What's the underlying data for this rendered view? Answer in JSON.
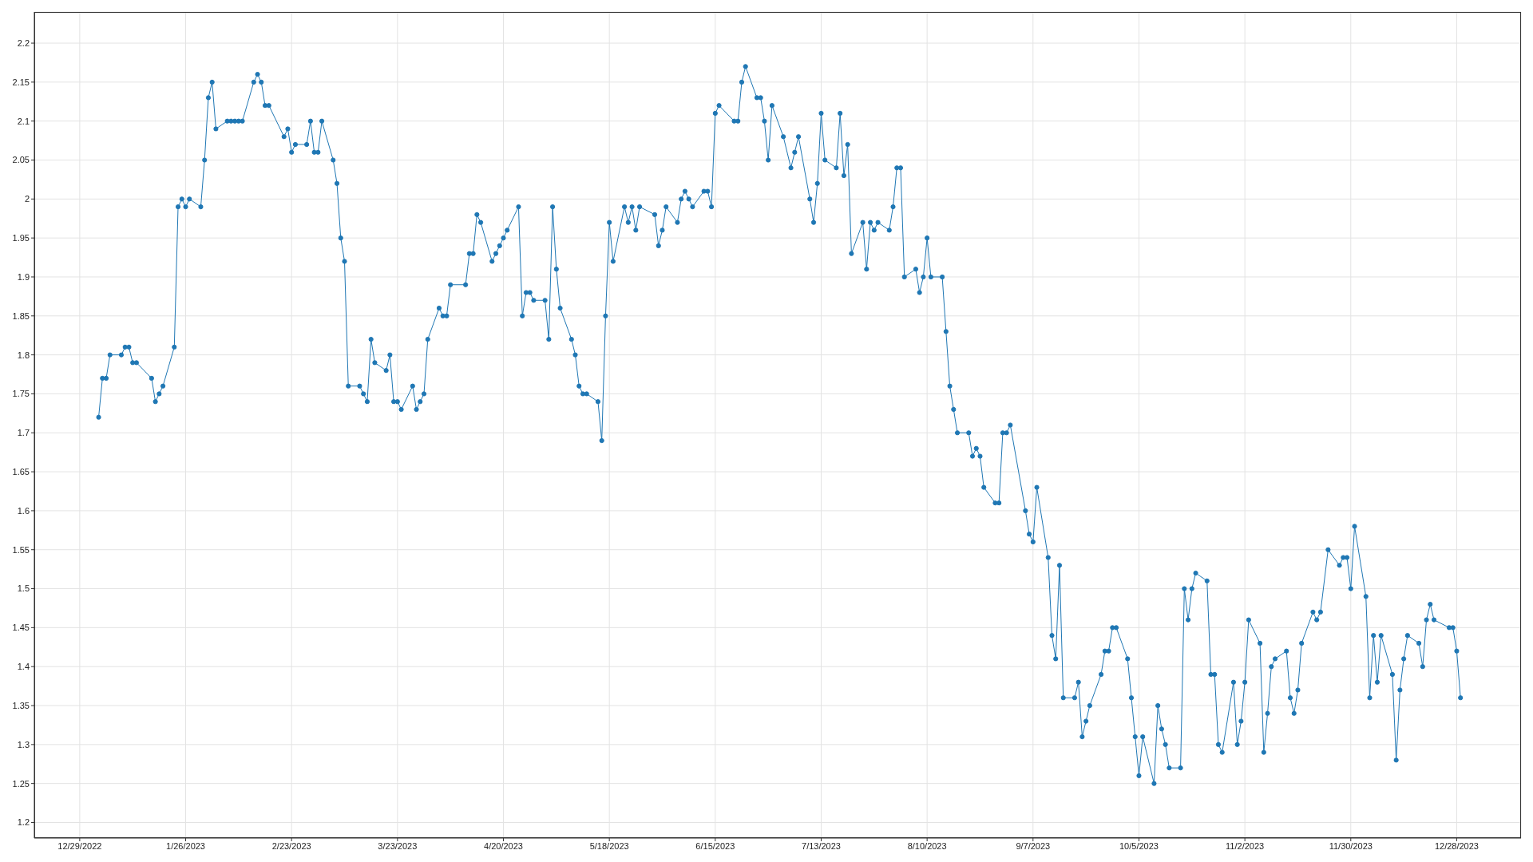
{
  "chart_data": {
    "type": "line",
    "color": "#1f77b4",
    "marker": "circle",
    "grid": true,
    "xlim": [
      "2022-12-17",
      "2024-01-14"
    ],
    "xticks": [
      {
        "value": "2022-12-29",
        "label": "12/29/2022"
      },
      {
        "value": "2023-01-26",
        "label": "1/26/2023"
      },
      {
        "value": "2023-02-23",
        "label": "2/23/2023"
      },
      {
        "value": "2023-03-23",
        "label": "3/23/2023"
      },
      {
        "value": "2023-04-20",
        "label": "4/20/2023"
      },
      {
        "value": "2023-05-18",
        "label": "5/18/2023"
      },
      {
        "value": "2023-06-15",
        "label": "6/15/2023"
      },
      {
        "value": "2023-07-13",
        "label": "7/13/2023"
      },
      {
        "value": "2023-08-10",
        "label": "8/10/2023"
      },
      {
        "value": "2023-09-07",
        "label": "9/7/2023"
      },
      {
        "value": "2023-10-05",
        "label": "10/5/2023"
      },
      {
        "value": "2023-11-02",
        "label": "11/2/2023"
      },
      {
        "value": "2023-11-30",
        "label": "11/30/2023"
      },
      {
        "value": "2023-12-28",
        "label": "12/28/2023"
      }
    ],
    "ylim": [
      1.18,
      2.24
    ],
    "yticks": [
      1.2,
      1.25,
      1.3,
      1.35,
      1.4,
      1.45,
      1.5,
      1.55,
      1.6,
      1.65,
      1.7,
      1.75,
      1.8,
      1.85,
      1.9,
      1.95,
      2,
      2.05,
      2.1,
      2.15,
      2.2
    ],
    "x": [
      "2023-01-03",
      "2023-01-04",
      "2023-01-05",
      "2023-01-06",
      "2023-01-09",
      "2023-01-10",
      "2023-01-11",
      "2023-01-12",
      "2023-01-13",
      "2023-01-17",
      "2023-01-18",
      "2023-01-19",
      "2023-01-20",
      "2023-01-23",
      "2023-01-24",
      "2023-01-25",
      "2023-01-26",
      "2023-01-27",
      "2023-01-30",
      "2023-01-31",
      "2023-02-01",
      "2023-02-02",
      "2023-02-03",
      "2023-02-06",
      "2023-02-07",
      "2023-02-08",
      "2023-02-09",
      "2023-02-10",
      "2023-02-13",
      "2023-02-14",
      "2023-02-15",
      "2023-02-16",
      "2023-02-17",
      "2023-02-21",
      "2023-02-22",
      "2023-02-23",
      "2023-02-24",
      "2023-02-27",
      "2023-02-28",
      "2023-03-01",
      "2023-03-02",
      "2023-03-03",
      "2023-03-06",
      "2023-03-07",
      "2023-03-08",
      "2023-03-09",
      "2023-03-10",
      "2023-03-13",
      "2023-03-14",
      "2023-03-15",
      "2023-03-16",
      "2023-03-17",
      "2023-03-20",
      "2023-03-21",
      "2023-03-22",
      "2023-03-23",
      "2023-03-24",
      "2023-03-27",
      "2023-03-28",
      "2023-03-29",
      "2023-03-30",
      "2023-03-31",
      "2023-04-03",
      "2023-04-04",
      "2023-04-05",
      "2023-04-06",
      "2023-04-10",
      "2023-04-11",
      "2023-04-12",
      "2023-04-13",
      "2023-04-14",
      "2023-04-17",
      "2023-04-18",
      "2023-04-19",
      "2023-04-20",
      "2023-04-21",
      "2023-04-24",
      "2023-04-25",
      "2023-04-26",
      "2023-04-27",
      "2023-04-28",
      "2023-05-01",
      "2023-05-02",
      "2023-05-03",
      "2023-05-04",
      "2023-05-05",
      "2023-05-08",
      "2023-05-09",
      "2023-05-10",
      "2023-05-11",
      "2023-05-12",
      "2023-05-15",
      "2023-05-16",
      "2023-05-17",
      "2023-05-18",
      "2023-05-19",
      "2023-05-22",
      "2023-05-23",
      "2023-05-24",
      "2023-05-25",
      "2023-05-26",
      "2023-05-30",
      "2023-05-31",
      "2023-06-01",
      "2023-06-02",
      "2023-06-05",
      "2023-06-06",
      "2023-06-07",
      "2023-06-08",
      "2023-06-09",
      "2023-06-12",
      "2023-06-13",
      "2023-06-14",
      "2023-06-15",
      "2023-06-16",
      "2023-06-20",
      "2023-06-21",
      "2023-06-22",
      "2023-06-23",
      "2023-06-26",
      "2023-06-27",
      "2023-06-28",
      "2023-06-29",
      "2023-06-30",
      "2023-07-03",
      "2023-07-05",
      "2023-07-06",
      "2023-07-07",
      "2023-07-10",
      "2023-07-11",
      "2023-07-12",
      "2023-07-13",
      "2023-07-14",
      "2023-07-17",
      "2023-07-18",
      "2023-07-19",
      "2023-07-20",
      "2023-07-21",
      "2023-07-24",
      "2023-07-25",
      "2023-07-26",
      "2023-07-27",
      "2023-07-28",
      "2023-07-31",
      "2023-08-01",
      "2023-08-02",
      "2023-08-03",
      "2023-08-04",
      "2023-08-07",
      "2023-08-08",
      "2023-08-09",
      "2023-08-10",
      "2023-08-11",
      "2023-08-14",
      "2023-08-15",
      "2023-08-16",
      "2023-08-17",
      "2023-08-18",
      "2023-08-21",
      "2023-08-22",
      "2023-08-23",
      "2023-08-24",
      "2023-08-25",
      "2023-08-28",
      "2023-08-29",
      "2023-08-30",
      "2023-08-31",
      "2023-09-01",
      "2023-09-05",
      "2023-09-06",
      "2023-09-07",
      "2023-09-08",
      "2023-09-11",
      "2023-09-12",
      "2023-09-13",
      "2023-09-14",
      "2023-09-15",
      "2023-09-18",
      "2023-09-19",
      "2023-09-20",
      "2023-09-21",
      "2023-09-22",
      "2023-09-25",
      "2023-09-26",
      "2023-09-27",
      "2023-09-28",
      "2023-09-29",
      "2023-10-02",
      "2023-10-03",
      "2023-10-04",
      "2023-10-05",
      "2023-10-06",
      "2023-10-09",
      "2023-10-10",
      "2023-10-11",
      "2023-10-12",
      "2023-10-13",
      "2023-10-16",
      "2023-10-17",
      "2023-10-18",
      "2023-10-19",
      "2023-10-20",
      "2023-10-23",
      "2023-10-24",
      "2023-10-25",
      "2023-10-26",
      "2023-10-27",
      "2023-10-30",
      "2023-10-31",
      "2023-11-01",
      "2023-11-02",
      "2023-11-03",
      "2023-11-06",
      "2023-11-07",
      "2023-11-08",
      "2023-11-09",
      "2023-11-10",
      "2023-11-13",
      "2023-11-14",
      "2023-11-15",
      "2023-11-16",
      "2023-11-17",
      "2023-11-20",
      "2023-11-21",
      "2023-11-22",
      "2023-11-24",
      "2023-11-27",
      "2023-11-28",
      "2023-11-29",
      "2023-11-30",
      "2023-12-01",
      "2023-12-04",
      "2023-12-05",
      "2023-12-06",
      "2023-12-07",
      "2023-12-08",
      "2023-12-11",
      "2023-12-12",
      "2023-12-13",
      "2023-12-14",
      "2023-12-15",
      "2023-12-18",
      "2023-12-19",
      "2023-12-20",
      "2023-12-21",
      "2023-12-22",
      "2023-12-26",
      "2023-12-27",
      "2023-12-28",
      "2023-12-29"
    ],
    "values": [
      1.72,
      1.77,
      1.77,
      1.8,
      1.8,
      1.81,
      1.81,
      1.79,
      1.79,
      1.77,
      1.74,
      1.75,
      1.76,
      1.81,
      1.99,
      2.0,
      1.99,
      2.0,
      1.99,
      2.05,
      2.13,
      2.15,
      2.09,
      2.1,
      2.1,
      2.1,
      2.1,
      2.1,
      2.15,
      2.16,
      2.15,
      2.12,
      2.12,
      2.08,
      2.09,
      2.06,
      2.07,
      2.07,
      2.1,
      2.06,
      2.06,
      2.1,
      2.05,
      2.02,
      1.95,
      1.92,
      1.76,
      1.76,
      1.75,
      1.74,
      1.82,
      1.79,
      1.78,
      1.8,
      1.74,
      1.74,
      1.73,
      1.76,
      1.73,
      1.74,
      1.75,
      1.82,
      1.86,
      1.85,
      1.85,
      1.89,
      1.89,
      1.93,
      1.93,
      1.98,
      1.97,
      1.92,
      1.93,
      1.94,
      1.95,
      1.96,
      1.99,
      1.85,
      1.88,
      1.88,
      1.87,
      1.87,
      1.82,
      1.99,
      1.91,
      1.86,
      1.82,
      1.8,
      1.76,
      1.75,
      1.75,
      1.74,
      1.69,
      1.85,
      1.97,
      1.92,
      1.99,
      1.97,
      1.99,
      1.96,
      1.99,
      1.98,
      1.94,
      1.96,
      1.99,
      1.97,
      2.0,
      2.01,
      2.0,
      1.99,
      2.01,
      2.01,
      1.99,
      2.11,
      2.12,
      2.1,
      2.1,
      2.15,
      2.17,
      2.13,
      2.13,
      2.1,
      2.05,
      2.12,
      2.08,
      2.04,
      2.06,
      2.08,
      2.0,
      1.97,
      2.02,
      2.11,
      2.05,
      2.04,
      2.11,
      2.03,
      2.07,
      1.93,
      1.97,
      1.91,
      1.97,
      1.96,
      1.97,
      1.96,
      1.99,
      2.04,
      2.04,
      1.9,
      1.91,
      1.88,
      1.9,
      1.95,
      1.9,
      1.9,
      1.83,
      1.76,
      1.73,
      1.7,
      1.7,
      1.67,
      1.68,
      1.67,
      1.63,
      1.61,
      1.61,
      1.7,
      1.7,
      1.71,
      1.6,
      1.57,
      1.56,
      1.63,
      1.54,
      1.44,
      1.41,
      1.53,
      1.36,
      1.36,
      1.38,
      1.31,
      1.33,
      1.35,
      1.39,
      1.42,
      1.42,
      1.45,
      1.45,
      1.41,
      1.36,
      1.31,
      1.26,
      1.31,
      1.25,
      1.35,
      1.32,
      1.3,
      1.27,
      1.27,
      1.5,
      1.46,
      1.5,
      1.52,
      1.51,
      1.39,
      1.39,
      1.3,
      1.29,
      1.38,
      1.3,
      1.33,
      1.38,
      1.46,
      1.43,
      1.29,
      1.34,
      1.4,
      1.41,
      1.42,
      1.36,
      1.34,
      1.37,
      1.43,
      1.47,
      1.46,
      1.47,
      1.55,
      1.53,
      1.54,
      1.54,
      1.5,
      1.58,
      1.49,
      1.36,
      1.44,
      1.38,
      1.44,
      1.39,
      1.28,
      1.37,
      1.41,
      1.44,
      1.43,
      1.4,
      1.46,
      1.48,
      1.46,
      1.45,
      1.45,
      1.42,
      1.36
    ]
  }
}
